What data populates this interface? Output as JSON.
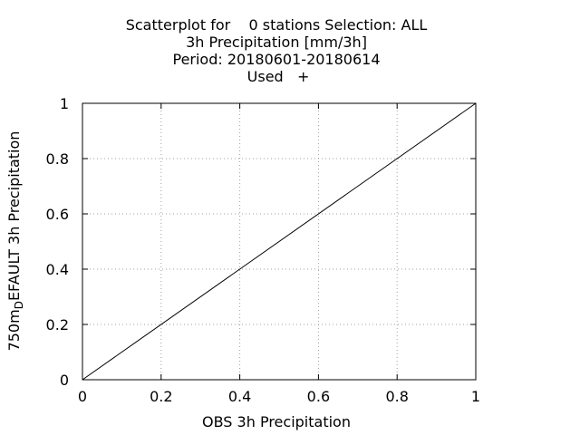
{
  "chart_data": {
    "type": "scatter",
    "title_lines": [
      "Scatterplot for    0 stations Selection: ALL",
      "3h Precipitation [mm/3h]",
      "Period: 20180601-20180614",
      "Used   +"
    ],
    "xlabel": "OBS 3h Precipitation",
    "ylabel": "750m_D EFAULT 3h Precipitation",
    "ylabel_parts": {
      "before": "750m",
      "subscript": "D",
      "after": "EFAULT 3h Precipitation"
    },
    "xlim": [
      0,
      1
    ],
    "ylim": [
      0,
      1
    ],
    "xticks": [
      "0",
      "0.2",
      "0.4",
      "0.6",
      "0.8",
      "1"
    ],
    "yticks": [
      "0",
      "0.2",
      "0.4",
      "0.6",
      "0.8",
      "1"
    ],
    "grid": true,
    "reference_line": {
      "x": [
        0,
        1
      ],
      "y": [
        0,
        1
      ]
    },
    "series": [],
    "colors": {
      "axis": "#000000",
      "grid": "#a0a0a0",
      "line": "#000000"
    }
  }
}
